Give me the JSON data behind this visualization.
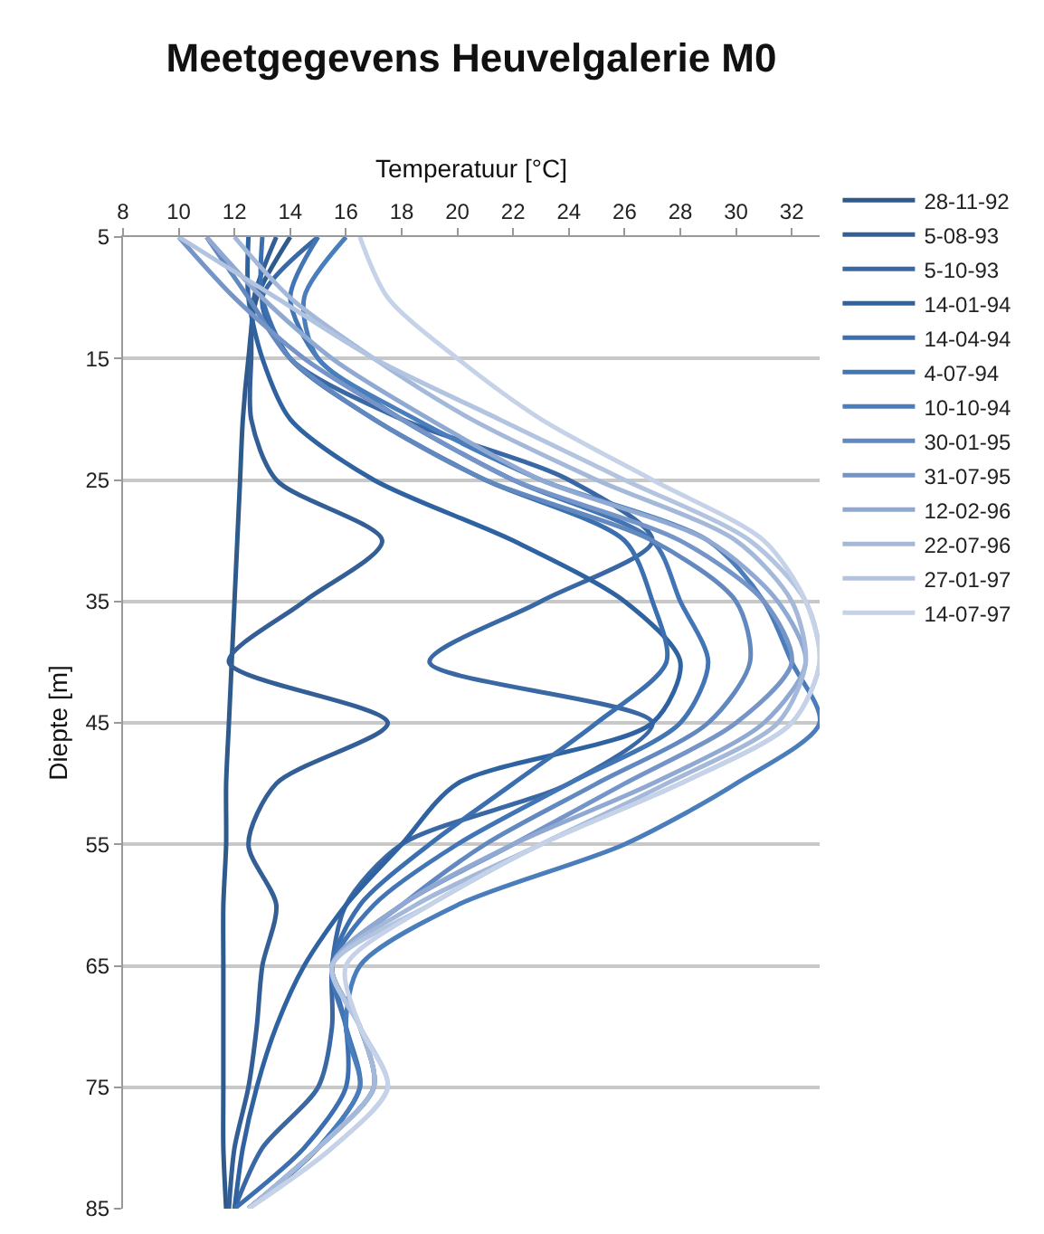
{
  "chart_data": {
    "type": "line",
    "title": "Meetgegevens Heuvelgalerie M0",
    "xlabel": "Temperatuur [°C]",
    "ylabel": "Diepte [m]",
    "xlim": [
      8,
      33
    ],
    "xticks": [
      8,
      10,
      12,
      14,
      16,
      18,
      20,
      22,
      24,
      26,
      28,
      30,
      32
    ],
    "ylim": [
      85,
      5
    ],
    "yticks": [
      5,
      15,
      25,
      35,
      45,
      55,
      65,
      75,
      85
    ],
    "grid": "y",
    "legend": "top right",
    "marker": "none",
    "line_style": "solid",
    "series": [
      {
        "name": "28-11-92",
        "color": "#2e5a8c",
        "x": [
          14,
          12.8,
          12.5,
          12.3,
          12.2,
          12.1,
          12,
          11.9,
          11.8,
          11.7,
          11.7,
          11.6,
          11.6,
          11.6,
          11.6,
          11.6,
          11.7
        ],
        "values": [
          5,
          10,
          15,
          20,
          25,
          30,
          35,
          40,
          45,
          50,
          55,
          60,
          65,
          70,
          75,
          80,
          85
        ]
      },
      {
        "name": "5-08-93",
        "color": "#335f96",
        "x": [
          13.5,
          12.7,
          12.6,
          12.6,
          13.5,
          17.3,
          14.5,
          11.8,
          17.5,
          13.5,
          12.5,
          13.5,
          13,
          12.8,
          12.5,
          12,
          11.8
        ],
        "values": [
          5,
          10,
          15,
          20,
          25,
          30,
          35,
          40,
          45,
          50,
          55,
          60,
          65,
          70,
          75,
          80,
          85
        ]
      },
      {
        "name": "5-10-93",
        "color": "#3a68a4",
        "x": [
          15,
          13,
          14,
          18,
          24,
          27,
          23,
          19,
          27,
          24,
          18,
          16,
          15.5,
          15.5,
          15,
          13,
          12
        ],
        "values": [
          5,
          10,
          15,
          20,
          25,
          30,
          35,
          40,
          45,
          50,
          55,
          60,
          65,
          70,
          75,
          80,
          85
        ]
      },
      {
        "name": "14-01-94",
        "color": "#2f62a0",
        "x": [
          12.5,
          12.5,
          13,
          14,
          17,
          22,
          26,
          28,
          27,
          20,
          18,
          16,
          14.5,
          13.5,
          12.8,
          12.3,
          12
        ],
        "values": [
          5,
          10,
          15,
          20,
          25,
          30,
          35,
          40,
          45,
          50,
          55,
          60,
          65,
          70,
          75,
          80,
          85
        ]
      },
      {
        "name": "14-04-94",
        "color": "#3c6fb0",
        "x": [
          13,
          13,
          14,
          17,
          21,
          26,
          27,
          27.5,
          25,
          22,
          19,
          16.5,
          15.5,
          16,
          16,
          14.5,
          12
        ],
        "values": [
          5,
          10,
          15,
          20,
          25,
          30,
          35,
          40,
          45,
          50,
          55,
          60,
          65,
          70,
          75,
          80,
          85
        ]
      },
      {
        "name": "4-07-94",
        "color": "#4275b5",
        "x": [
          15,
          14,
          15,
          18,
          22,
          27,
          28,
          29,
          28,
          24,
          20,
          17,
          15.5,
          16,
          16.5,
          15,
          12.5
        ],
        "values": [
          5,
          10,
          15,
          20,
          25,
          30,
          35,
          40,
          45,
          50,
          55,
          60,
          65,
          70,
          75,
          80,
          85
        ]
      },
      {
        "name": "10-10-94",
        "color": "#4a7dbb",
        "x": [
          16,
          14.5,
          15,
          18.5,
          23,
          29,
          31,
          32,
          33,
          30,
          26,
          20,
          16.5,
          16,
          16.5,
          15,
          12.5
        ],
        "values": [
          5,
          10,
          15,
          20,
          25,
          30,
          35,
          40,
          45,
          50,
          55,
          60,
          65,
          70,
          75,
          80,
          85
        ]
      },
      {
        "name": "30-01-95",
        "color": "#6288c0",
        "x": [
          11,
          12.5,
          14,
          17,
          21,
          27,
          30,
          30.5,
          29,
          25,
          21,
          18,
          15.5,
          16.5,
          17,
          15,
          12.5
        ],
        "values": [
          5,
          10,
          15,
          20,
          25,
          30,
          35,
          40,
          45,
          50,
          55,
          60,
          65,
          70,
          75,
          80,
          85
        ]
      },
      {
        "name": "31-07-95",
        "color": "#7594c8",
        "x": [
          10,
          12,
          14.5,
          18,
          22,
          28,
          31,
          32,
          30,
          26,
          22,
          18,
          15.5,
          16.5,
          17,
          15,
          12.5
        ],
        "values": [
          5,
          10,
          15,
          20,
          25,
          30,
          35,
          40,
          45,
          50,
          55,
          60,
          65,
          70,
          75,
          80,
          85
        ]
      },
      {
        "name": "12-02-96",
        "color": "#90a9d3",
        "x": [
          11,
          13,
          15.5,
          19,
          23,
          29,
          31.5,
          32.5,
          31,
          27,
          22,
          18,
          15.5,
          16.5,
          17,
          15,
          12.5
        ],
        "values": [
          5,
          10,
          15,
          20,
          25,
          30,
          35,
          40,
          45,
          50,
          55,
          60,
          65,
          70,
          75,
          80,
          85
        ]
      },
      {
        "name": "22-07-96",
        "color": "#a4b8da",
        "x": [
          12,
          14,
          17,
          20.5,
          25,
          30,
          32,
          32.5,
          31.5,
          27.5,
          23,
          18.5,
          15.5,
          16.5,
          17,
          15,
          12.5
        ],
        "values": [
          5,
          10,
          15,
          20,
          25,
          30,
          35,
          40,
          45,
          50,
          55,
          60,
          65,
          70,
          75,
          80,
          85
        ]
      },
      {
        "name": "27-01-97",
        "color": "#b3c4e0",
        "x": [
          10,
          13.5,
          17,
          21.5,
          26,
          30.5,
          32.5,
          33,
          32,
          28,
          23,
          19,
          15.5,
          16.5,
          17.5,
          15.5,
          12.5
        ],
        "values": [
          5,
          10,
          15,
          20,
          25,
          30,
          35,
          40,
          45,
          50,
          55,
          60,
          65,
          70,
          75,
          80,
          85
        ]
      },
      {
        "name": "14-07-97",
        "color": "#c5d2e8",
        "x": [
          16.5,
          17.5,
          20,
          23,
          27,
          31,
          32.5,
          33,
          32,
          28,
          23,
          19,
          16,
          16.5,
          17.5,
          15.5,
          12.5
        ],
        "values": [
          5,
          10,
          15,
          20,
          25,
          30,
          35,
          40,
          45,
          50,
          55,
          60,
          65,
          70,
          75,
          80,
          85
        ]
      }
    ]
  }
}
